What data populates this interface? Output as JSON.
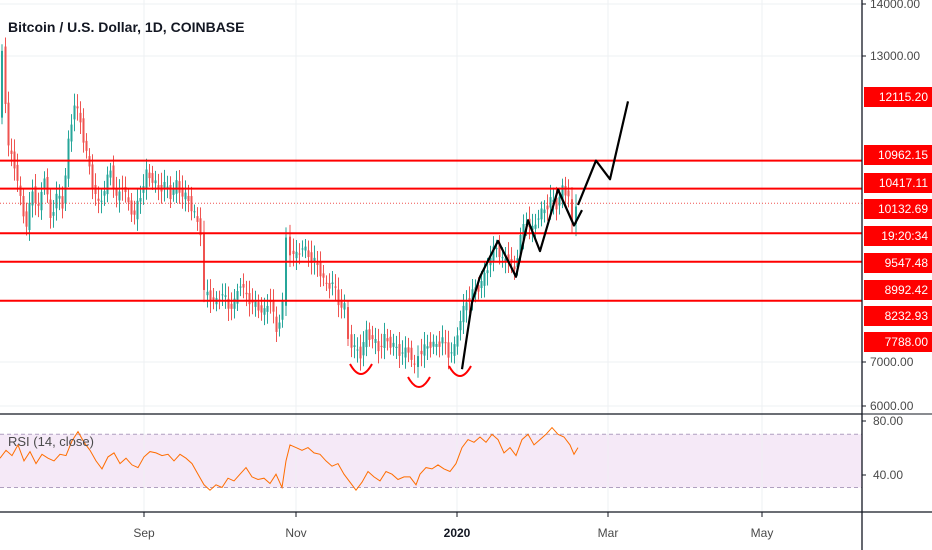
{
  "chart_data": {
    "type": "candlestick",
    "title": "Bitcoin / U.S. Dollar, 1D, COINBASE",
    "price_axis": {
      "ticks": [
        "14000.00",
        "13000.00",
        "7000.00",
        "6000.00"
      ]
    },
    "x_axis": {
      "ticks": [
        {
          "label": "Sep",
          "bold": false
        },
        {
          "label": "Nov",
          "bold": false
        },
        {
          "label": "2020",
          "bold": true
        },
        {
          "label": "Mar",
          "bold": false
        },
        {
          "label": "May",
          "bold": false
        }
      ]
    },
    "horizontal_levels": [
      10962.15,
      10417.11,
      9547.48,
      8992.42,
      8232.93
    ],
    "price_labels": [
      {
        "text": "12115.20",
        "color": "#ff0000"
      },
      {
        "text": "10962.15",
        "color": "#ff0000"
      },
      {
        "text": "10417.11",
        "color": "#ff0000"
      },
      {
        "text": "10132.69",
        "color": "#ff0000"
      },
      {
        "text": "19:20:34",
        "color": "#ff0000"
      },
      {
        "text": "9547.48",
        "color": "#ff0000"
      },
      {
        "text": "8992.42",
        "color": "#ff0000"
      },
      {
        "text": "8232.93",
        "color": "#ff0000"
      },
      {
        "text": "7788.00",
        "color": "#ff0000"
      }
    ],
    "last_price": 10132.69,
    "price_path": [
      [
        0,
        11800
      ],
      [
        4,
        13100
      ],
      [
        10,
        11200
      ],
      [
        16,
        10900
      ],
      [
        22,
        10200
      ],
      [
        28,
        9700
      ],
      [
        34,
        10400
      ],
      [
        40,
        10000
      ],
      [
        46,
        10700
      ],
      [
        52,
        9800
      ],
      [
        58,
        10300
      ],
      [
        64,
        10100
      ],
      [
        70,
        11300
      ],
      [
        76,
        12100
      ],
      [
        82,
        11700
      ],
      [
        88,
        11100
      ],
      [
        94,
        10500
      ],
      [
        100,
        10100
      ],
      [
        106,
        10400
      ],
      [
        112,
        10800
      ],
      [
        118,
        10200
      ],
      [
        124,
        10500
      ],
      [
        130,
        10100
      ],
      [
        136,
        9900
      ],
      [
        142,
        10300
      ],
      [
        148,
        10700
      ],
      [
        154,
        10600
      ],
      [
        160,
        10400
      ],
      [
        166,
        10500
      ],
      [
        172,
        10300
      ],
      [
        178,
        10500
      ],
      [
        184,
        10300
      ],
      [
        190,
        10200
      ],
      [
        196,
        9900
      ],
      [
        202,
        9600
      ],
      [
        206,
        8400
      ],
      [
        212,
        8300
      ],
      [
        218,
        8200
      ],
      [
        224,
        8400
      ],
      [
        230,
        8100
      ],
      [
        236,
        8200
      ],
      [
        242,
        8600
      ],
      [
        248,
        8300
      ],
      [
        254,
        8200
      ],
      [
        260,
        8100
      ],
      [
        266,
        8000
      ],
      [
        272,
        8300
      ],
      [
        278,
        7600
      ],
      [
        284,
        8200
      ],
      [
        288,
        9400
      ],
      [
        292,
        9200
      ],
      [
        298,
        9100
      ],
      [
        304,
        9300
      ],
      [
        310,
        9100
      ],
      [
        316,
        9000
      ],
      [
        322,
        8800
      ],
      [
        328,
        8500
      ],
      [
        334,
        8600
      ],
      [
        340,
        8200
      ],
      [
        346,
        8100
      ],
      [
        350,
        7500
      ],
      [
        356,
        7300
      ],
      [
        362,
        7200
      ],
      [
        368,
        7600
      ],
      [
        374,
        7500
      ],
      [
        380,
        7300
      ],
      [
        386,
        7500
      ],
      [
        392,
        7400
      ],
      [
        398,
        7300
      ],
      [
        404,
        7200
      ],
      [
        410,
        7300
      ],
      [
        416,
        6900
      ],
      [
        420,
        7200
      ],
      [
        426,
        7300
      ],
      [
        432,
        7400
      ],
      [
        438,
        7350
      ],
      [
        444,
        7500
      ],
      [
        450,
        7200
      ],
      [
        456,
        7300
      ],
      [
        462,
        7900
      ],
      [
        468,
        8200
      ],
      [
        474,
        8400
      ],
      [
        480,
        8500
      ],
      [
        486,
        8700
      ],
      [
        492,
        9100
      ],
      [
        498,
        9300
      ],
      [
        504,
        9000
      ],
      [
        510,
        9100
      ],
      [
        516,
        8800
      ],
      [
        522,
        9500
      ],
      [
        528,
        9800
      ],
      [
        534,
        9600
      ],
      [
        540,
        9900
      ],
      [
        546,
        10000
      ],
      [
        552,
        10200
      ],
      [
        558,
        10100
      ],
      [
        564,
        10400
      ],
      [
        570,
        10300
      ],
      [
        574,
        9700
      ],
      [
        578,
        10100
      ]
    ],
    "projection_path": [
      [
        578,
        10100
      ],
      [
        596,
        10962.15
      ],
      [
        610,
        10600
      ],
      [
        628,
        12115.2
      ]
    ],
    "zigzag_path": [
      [
        462,
        6900
      ],
      [
        472,
        8200
      ],
      [
        480,
        8700
      ],
      [
        498,
        9400
      ],
      [
        516,
        8700
      ],
      [
        528,
        9800
      ],
      [
        540,
        9200
      ],
      [
        558,
        10400
      ],
      [
        574,
        9700
      ],
      [
        582,
        10000
      ]
    ],
    "rounded_bottoms": [
      {
        "x_center": 361
      },
      {
        "x_center": 419
      },
      {
        "x_center": 460
      }
    ],
    "rsi": {
      "title": "RSI (14, close)",
      "tick_labels": [
        "80.00",
        "40.00"
      ],
      "upper_band": 70,
      "lower_band": 30,
      "values_path": [
        [
          0,
          52
        ],
        [
          6,
          58
        ],
        [
          12,
          54
        ],
        [
          18,
          62
        ],
        [
          24,
          50
        ],
        [
          30,
          57
        ],
        [
          36,
          48
        ],
        [
          42,
          55
        ],
        [
          48,
          52
        ],
        [
          54,
          50
        ],
        [
          60,
          55
        ],
        [
          66,
          54
        ],
        [
          72,
          65
        ],
        [
          78,
          72
        ],
        [
          84,
          64
        ],
        [
          90,
          58
        ],
        [
          96,
          50
        ],
        [
          102,
          44
        ],
        [
          108,
          53
        ],
        [
          114,
          56
        ],
        [
          120,
          48
        ],
        [
          126,
          52
        ],
        [
          132,
          47
        ],
        [
          138,
          45
        ],
        [
          144,
          53
        ],
        [
          150,
          57
        ],
        [
          156,
          56
        ],
        [
          162,
          54
        ],
        [
          168,
          55
        ],
        [
          174,
          50
        ],
        [
          180,
          55
        ],
        [
          186,
          52
        ],
        [
          192,
          48
        ],
        [
          198,
          40
        ],
        [
          204,
          32
        ],
        [
          210,
          28
        ],
        [
          216,
          32
        ],
        [
          222,
          30
        ],
        [
          228,
          37
        ],
        [
          234,
          35
        ],
        [
          240,
          40
        ],
        [
          246,
          45
        ],
        [
          252,
          38
        ],
        [
          258,
          36
        ],
        [
          264,
          37
        ],
        [
          270,
          33
        ],
        [
          276,
          40
        ],
        [
          282,
          30
        ],
        [
          286,
          50
        ],
        [
          290,
          62
        ],
        [
          296,
          60
        ],
        [
          302,
          58
        ],
        [
          308,
          60
        ],
        [
          314,
          56
        ],
        [
          320,
          55
        ],
        [
          326,
          50
        ],
        [
          332,
          46
        ],
        [
          338,
          48
        ],
        [
          344,
          40
        ],
        [
          350,
          34
        ],
        [
          356,
          28
        ],
        [
          362,
          34
        ],
        [
          368,
          42
        ],
        [
          374,
          38
        ],
        [
          380,
          35
        ],
        [
          386,
          42
        ],
        [
          392,
          40
        ],
        [
          398,
          36
        ],
        [
          404,
          38
        ],
        [
          410,
          38
        ],
        [
          416,
          32
        ],
        [
          420,
          40
        ],
        [
          426,
          45
        ],
        [
          432,
          44
        ],
        [
          438,
          47
        ],
        [
          444,
          44
        ],
        [
          450,
          42
        ],
        [
          456,
          48
        ],
        [
          462,
          60
        ],
        [
          468,
          66
        ],
        [
          474,
          64
        ],
        [
          480,
          68
        ],
        [
          486,
          64
        ],
        [
          492,
          70
        ],
        [
          498,
          66
        ],
        [
          504,
          56
        ],
        [
          510,
          60
        ],
        [
          516,
          54
        ],
        [
          522,
          66
        ],
        [
          528,
          70
        ],
        [
          534,
          62
        ],
        [
          540,
          66
        ],
        [
          546,
          70
        ],
        [
          552,
          75
        ],
        [
          558,
          70
        ],
        [
          564,
          68
        ],
        [
          570,
          62
        ],
        [
          574,
          55
        ],
        [
          578,
          60
        ]
      ]
    }
  }
}
